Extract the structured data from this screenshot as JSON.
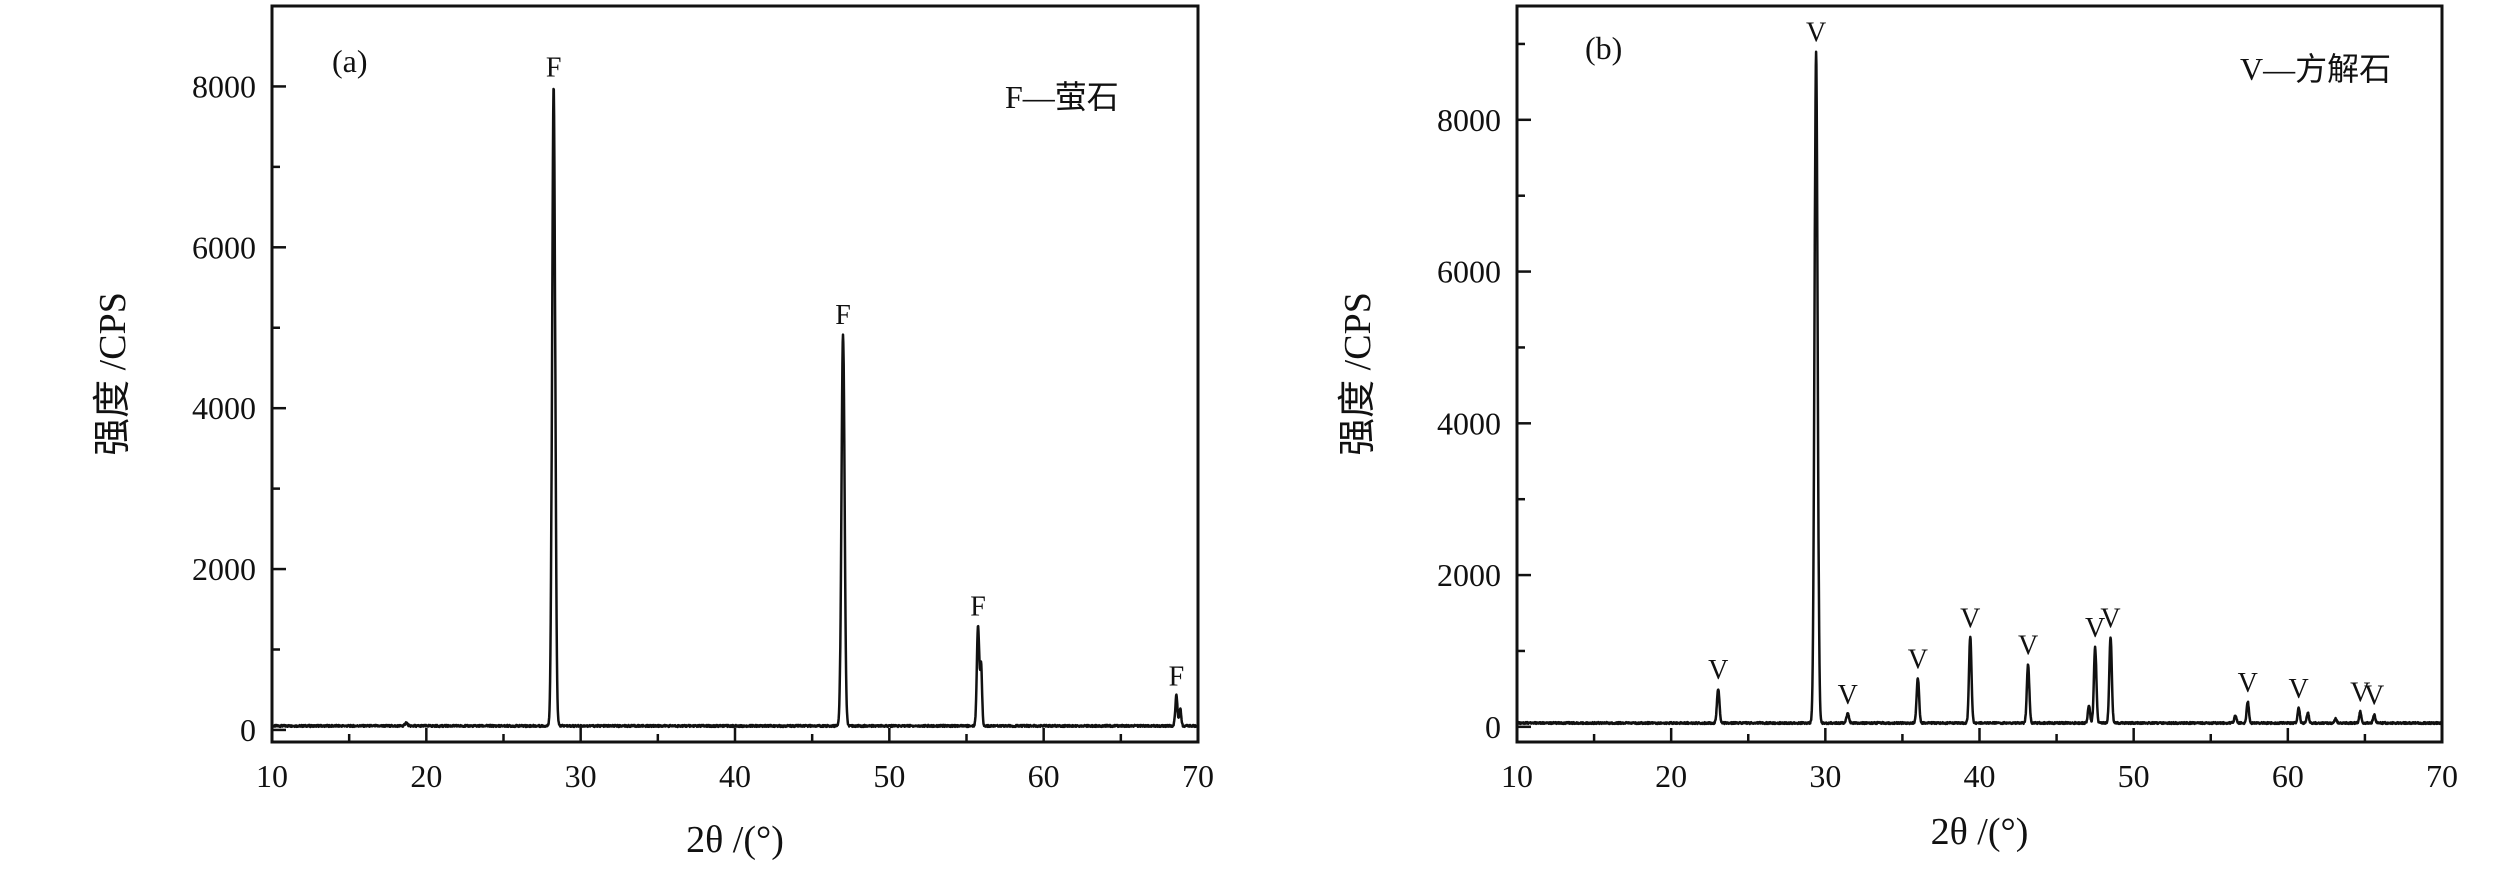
{
  "chart_data": [
    {
      "type": "line",
      "panel_label": "(a)",
      "legend_text": "F—萤石",
      "xlabel": "2θ /(°)",
      "ylabel": "强度 /CPS",
      "xlim": [
        10,
        70
      ],
      "ylim": [
        -150,
        9000
      ],
      "xticks": [
        10,
        20,
        30,
        40,
        50,
        60,
        70
      ],
      "yticks": [
        0,
        2000,
        4000,
        6000,
        8000
      ],
      "baseline": 50,
      "series": [
        {
          "peaks": [
            {
              "x": 18.7,
              "y": 90,
              "w": 0.08
            },
            {
              "x": 28.25,
              "y": 8000,
              "w": 0.1
            },
            {
              "x": 47.0,
              "y": 4920,
              "w": 0.1
            },
            {
              "x": 55.75,
              "y": 1300,
              "w": 0.08
            },
            {
              "x": 55.95,
              "y": 780,
              "w": 0.06
            },
            {
              "x": 68.6,
              "y": 430,
              "w": 0.07
            },
            {
              "x": 68.85,
              "y": 270,
              "w": 0.06
            }
          ]
        }
      ],
      "annotations": [
        {
          "text": "F",
          "x": 28.25,
          "y": 8000
        },
        {
          "text": "F",
          "x": 47.0,
          "y": 4920
        },
        {
          "text": "F",
          "x": 55.75,
          "y": 1300
        },
        {
          "text": "F",
          "x": 68.6,
          "y": 430
        }
      ],
      "grid": false
    },
    {
      "type": "line",
      "panel_label": "(b)",
      "legend_text": "V—方解石",
      "xlabel": "2θ /(°)",
      "ylabel": "强度 /CPS",
      "xlim": [
        10,
        70
      ],
      "ylim": [
        -200,
        9500
      ],
      "xticks": [
        10,
        20,
        30,
        40,
        50,
        60,
        70
      ],
      "yticks": [
        0,
        2000,
        4000,
        6000,
        8000
      ],
      "baseline": 50,
      "series": [
        {
          "peaks": [
            {
              "x": 23.05,
              "y": 500,
              "w": 0.08
            },
            {
              "x": 29.4,
              "y": 8900,
              "w": 0.1
            },
            {
              "x": 31.45,
              "y": 170,
              "w": 0.08
            },
            {
              "x": 36.0,
              "y": 640,
              "w": 0.08
            },
            {
              "x": 39.4,
              "y": 1180,
              "w": 0.08
            },
            {
              "x": 43.15,
              "y": 820,
              "w": 0.08
            },
            {
              "x": 47.1,
              "y": 280,
              "w": 0.07
            },
            {
              "x": 47.5,
              "y": 1050,
              "w": 0.08
            },
            {
              "x": 48.5,
              "y": 1180,
              "w": 0.08
            },
            {
              "x": 56.6,
              "y": 150,
              "w": 0.07
            },
            {
              "x": 57.4,
              "y": 330,
              "w": 0.07
            },
            {
              "x": 60.7,
              "y": 250,
              "w": 0.07
            },
            {
              "x": 61.3,
              "y": 180,
              "w": 0.07
            },
            {
              "x": 63.1,
              "y": 110,
              "w": 0.07
            },
            {
              "x": 64.7,
              "y": 200,
              "w": 0.07
            },
            {
              "x": 65.6,
              "y": 160,
              "w": 0.07
            }
          ]
        }
      ],
      "annotations": [
        {
          "text": "V",
          "x": 23.05,
          "y": 500
        },
        {
          "text": "V",
          "x": 29.4,
          "y": 8900
        },
        {
          "text": "V",
          "x": 31.45,
          "y": 170
        },
        {
          "text": "V",
          "x": 36.0,
          "y": 640
        },
        {
          "text": "V",
          "x": 39.4,
          "y": 1180
        },
        {
          "text": "V",
          "x": 43.15,
          "y": 820
        },
        {
          "text": "V",
          "x": 47.5,
          "y": 1050
        },
        {
          "text": "V",
          "x": 48.5,
          "y": 1180
        },
        {
          "text": "V",
          "x": 57.4,
          "y": 330
        },
        {
          "text": "V",
          "x": 60.7,
          "y": 250
        },
        {
          "text": "V",
          "x": 64.7,
          "y": 200
        },
        {
          "text": "V",
          "x": 65.6,
          "y": 160
        }
      ],
      "grid": false
    }
  ]
}
